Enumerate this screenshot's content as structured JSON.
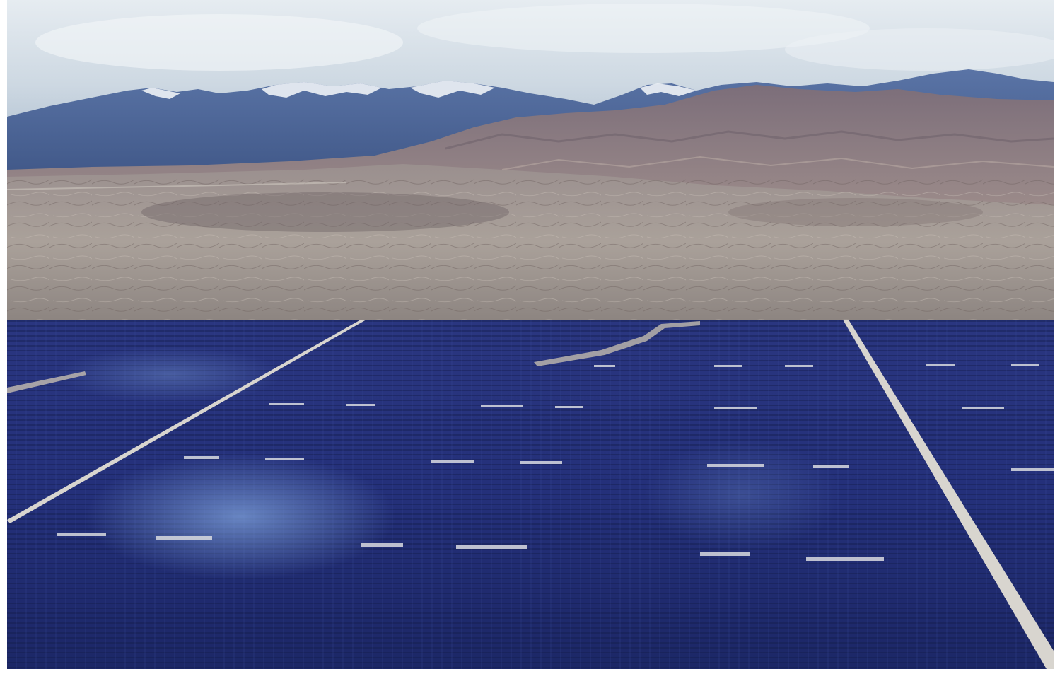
{
  "photo": {
    "subject": "solar-farm-below-snow-capped-mountains",
    "colors": {
      "sky_top": "#dfe7ee",
      "sky_bottom": "#b8c6d6",
      "far_mountain": "#4e6a9c",
      "snow": "#eef2f6",
      "near_hills": "#8a7a82",
      "desert_plain": "#a59a94",
      "panel_dark": "#1a2560",
      "panel_mid": "#2b3a85",
      "panel_light": "#4b63b0",
      "access_road": "#c9c7c2"
    }
  }
}
